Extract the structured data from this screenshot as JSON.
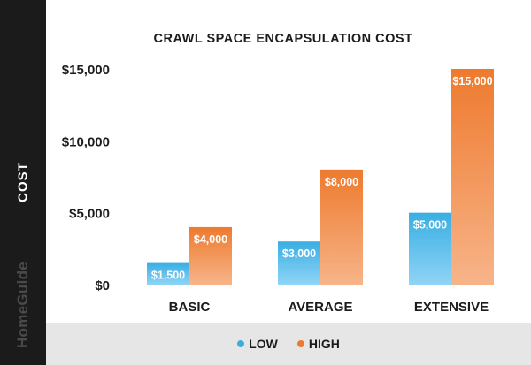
{
  "chart_data": {
    "type": "bar",
    "title": "CRAWL SPACE ENCAPSULATION COST",
    "ylabel": "COST",
    "xlabel": "",
    "categories": [
      "BASIC",
      "AVERAGE",
      "EXTENSIVE"
    ],
    "series": [
      {
        "name": "LOW",
        "values": [
          1500,
          3000,
          5000
        ],
        "labels": [
          "$1,500",
          "$3,000",
          "$5,000"
        ],
        "color": "#39aee3",
        "color_light": "#8fd4f6"
      },
      {
        "name": "HIGH",
        "values": [
          4000,
          8000,
          15000
        ],
        "labels": [
          "$4,000",
          "$8,000",
          "$15,000"
        ],
        "color": "#ee7a2e",
        "color_light": "#f7b489"
      }
    ],
    "ylim": [
      0,
      15000
    ],
    "yticks": [
      0,
      5000,
      10000,
      15000
    ],
    "ytick_labels": [
      "$0",
      "$5,000",
      "$10,000",
      "$15,000"
    ],
    "grid": false,
    "legend_position": "bottom"
  },
  "brand": "HomeGuide",
  "colors": {
    "sidebar": "#1b1b1b",
    "legend_bg": "#e6e6e6",
    "low": "#39aee3",
    "high": "#ee7a2e"
  }
}
